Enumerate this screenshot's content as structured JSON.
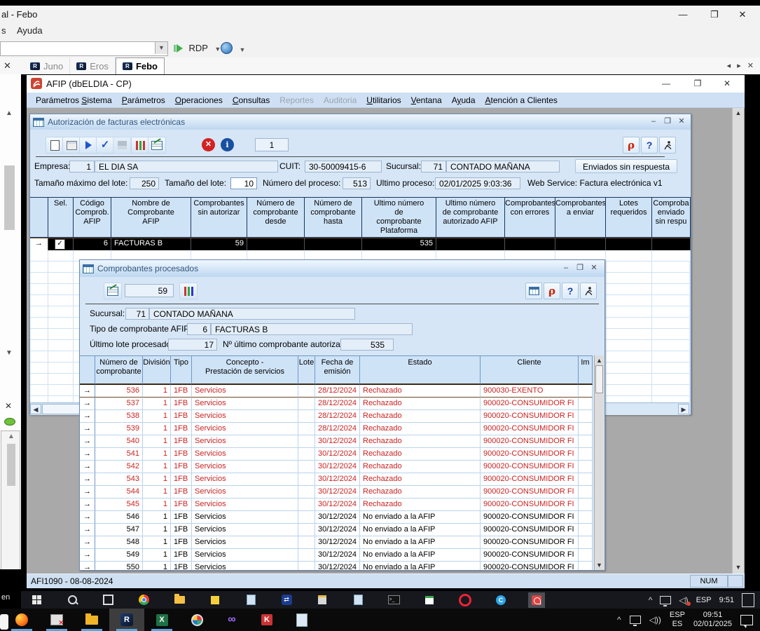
{
  "host": {
    "title": "al - Febo",
    "menu_partial": "s",
    "menu_item": "Ayuda",
    "rdp_label": "RDP",
    "close_glyph": "✕",
    "min_glyph": "—",
    "max_glyph": "❐",
    "tab_nav": "◂ ▸ ✕",
    "tabs": [
      {
        "label": "Juno",
        "active": false
      },
      {
        "label": "Eros",
        "active": false
      },
      {
        "label": "Febo",
        "active": true
      }
    ]
  },
  "afip": {
    "title": "AFIP   (dbELDIA - CP)",
    "menu": [
      {
        "pre": "Parámetros ",
        "u": "S",
        "post": "istema",
        "disabled": false
      },
      {
        "pre": "",
        "u": "P",
        "post": "arámetros",
        "disabled": false
      },
      {
        "pre": "",
        "u": "O",
        "post": "peraciones",
        "disabled": false
      },
      {
        "pre": "",
        "u": "C",
        "post": "onsultas",
        "disabled": false
      },
      {
        "pre": "Reportes",
        "u": "",
        "post": "",
        "disabled": true
      },
      {
        "pre": "Auditoria",
        "u": "",
        "post": "",
        "disabled": true
      },
      {
        "pre": "",
        "u": "U",
        "post": "tilitarios",
        "disabled": false
      },
      {
        "pre": "",
        "u": "V",
        "post": "entana",
        "disabled": false
      },
      {
        "pre": "A",
        "u": "y",
        "post": "uda",
        "disabled": false
      },
      {
        "pre": "",
        "u": "A",
        "post": "tención a Clientes",
        "disabled": false
      }
    ],
    "status_left": "AFI1090 - 08-08-2024",
    "status_num": "NUM"
  },
  "auth": {
    "title": "Autorización de facturas electrónicas",
    "counter": "1",
    "empresa_label": "Empresa:",
    "empresa_num": "1",
    "empresa_name": "EL DIA SA",
    "cuit_label": "CUIT:",
    "cuit": "30-50009415-6",
    "sucursal_label": "Sucursal:",
    "sucursal_num": "71",
    "sucursal_name": "CONTADO MAÑANA",
    "btn_enviados": "Enviados sin respuesta",
    "lote_max_label": "Tamaño máximo del lote:",
    "lote_max": "250",
    "lote_label": "Tamaño del lote:",
    "lote": "10",
    "proceso_label": "Número del proceso:",
    "proceso": "513",
    "ultimo_label": "Ultimo proceso:",
    "ultimo": "02/01/2025 9:03:36",
    "ws_label": "Web Service: Factura electrónica v1",
    "grid": {
      "headers": [
        "",
        "Sel.",
        "Código\nComprob.\nAFIP",
        "Nombre de\nComprobante\nAFIP",
        "Comprobantes\nsin autorizar",
        "Número de\ncomprobante\ndesde",
        "Número de\ncomprobante\nhasta",
        "Ultimo número\nde\ncomprobante\nPlataforma",
        "Ultimo número\nde comprobante\nautorizado AFIP",
        "Comprobantes\ncon errores",
        "Comprobantes\na enviar",
        "Lotes\nrequeridos",
        "Comproba\nenviado\nsin respu"
      ],
      "widths": [
        26,
        36,
        54,
        114,
        80,
        82,
        82,
        106,
        98,
        72,
        72,
        66,
        55
      ],
      "row": {
        "arrow": "→",
        "codigo": "6",
        "nombre": "FACTURAS B",
        "sin_autorizar": "59",
        "ultimo_plataforma": "535"
      }
    }
  },
  "proc": {
    "title": "Comprobantes procesados",
    "counter": "59",
    "sucursal_label": "Sucursal:",
    "sucursal_num": "71",
    "sucursal_name": "CONTADO MAÑANA",
    "tipo_label": "Tipo de comprobante AFIP:",
    "tipo_num": "6",
    "tipo_name": "FACTURAS B",
    "lote_label": "Último lote procesado:",
    "lote": "17",
    "autorizado_label": "Nº último comprobante autorizado:",
    "autorizado": "535",
    "table": {
      "headers": [
        "",
        "Número de\ncomprobante",
        "División",
        "Tipo",
        "Concepto -\nPrestación de servicios",
        "Lote",
        "Fecha de\nemisión",
        "Estado",
        "Cliente",
        "Im"
      ],
      "widths": [
        22,
        68,
        40,
        30,
        152,
        24,
        64,
        172,
        140,
        20
      ],
      "rows": [
        {
          "num": "536",
          "division": "1",
          "tipo": "1FB",
          "concepto": "Servicios",
          "lote": "",
          "fecha": "28/12/2024",
          "estado": "Rechazado",
          "cliente": "900030-EXENTO",
          "red": true
        },
        {
          "num": "537",
          "division": "1",
          "tipo": "1FB",
          "concepto": "Servicios",
          "lote": "",
          "fecha": "28/12/2024",
          "estado": "Rechazado",
          "cliente": "900020-CONSUMIDOR FI",
          "red": true
        },
        {
          "num": "538",
          "division": "1",
          "tipo": "1FB",
          "concepto": "Servicios",
          "lote": "",
          "fecha": "28/12/2024",
          "estado": "Rechazado",
          "cliente": "900020-CONSUMIDOR FI",
          "red": true
        },
        {
          "num": "539",
          "division": "1",
          "tipo": "1FB",
          "concepto": "Servicios",
          "lote": "",
          "fecha": "28/12/2024",
          "estado": "Rechazado",
          "cliente": "900020-CONSUMIDOR FI",
          "red": true
        },
        {
          "num": "540",
          "division": "1",
          "tipo": "1FB",
          "concepto": "Servicios",
          "lote": "",
          "fecha": "30/12/2024",
          "estado": "Rechazado",
          "cliente": "900020-CONSUMIDOR FI",
          "red": true
        },
        {
          "num": "541",
          "division": "1",
          "tipo": "1FB",
          "concepto": "Servicios",
          "lote": "",
          "fecha": "30/12/2024",
          "estado": "Rechazado",
          "cliente": "900020-CONSUMIDOR FI",
          "red": true
        },
        {
          "num": "542",
          "division": "1",
          "tipo": "1FB",
          "concepto": "Servicios",
          "lote": "",
          "fecha": "30/12/2024",
          "estado": "Rechazado",
          "cliente": "900020-CONSUMIDOR FI",
          "red": true
        },
        {
          "num": "543",
          "division": "1",
          "tipo": "1FB",
          "concepto": "Servicios",
          "lote": "",
          "fecha": "30/12/2024",
          "estado": "Rechazado",
          "cliente": "900020-CONSUMIDOR FI",
          "red": true
        },
        {
          "num": "544",
          "division": "1",
          "tipo": "1FB",
          "concepto": "Servicios",
          "lote": "",
          "fecha": "30/12/2024",
          "estado": "Rechazado",
          "cliente": "900020-CONSUMIDOR FI",
          "red": true
        },
        {
          "num": "545",
          "division": "1",
          "tipo": "1FB",
          "concepto": "Servicios",
          "lote": "",
          "fecha": "30/12/2024",
          "estado": "Rechazado",
          "cliente": "900020-CONSUMIDOR FI",
          "red": true
        },
        {
          "num": "546",
          "division": "1",
          "tipo": "1FB",
          "concepto": "Servicios",
          "lote": "",
          "fecha": "30/12/2024",
          "estado": "No enviado a la AFIP",
          "cliente": "900020-CONSUMIDOR FI",
          "red": false
        },
        {
          "num": "547",
          "division": "1",
          "tipo": "1FB",
          "concepto": "Servicios",
          "lote": "",
          "fecha": "30/12/2024",
          "estado": "No enviado a la AFIP",
          "cliente": "900020-CONSUMIDOR FI",
          "red": false
        },
        {
          "num": "548",
          "division": "1",
          "tipo": "1FB",
          "concepto": "Servicios",
          "lote": "",
          "fecha": "30/12/2024",
          "estado": "No enviado a la AFIP",
          "cliente": "900020-CONSUMIDOR FI",
          "red": false
        },
        {
          "num": "549",
          "division": "1",
          "tipo": "1FB",
          "concepto": "Servicios",
          "lote": "",
          "fecha": "30/12/2024",
          "estado": "No enviado a la AFIP",
          "cliente": "900020-CONSUMIDOR FI",
          "red": false
        },
        {
          "num": "550",
          "division": "1",
          "tipo": "1FB",
          "concepto": "Servicios",
          "lote": "",
          "fecha": "30/12/2024",
          "estado": "No enviado a la AFIP",
          "cliente": "900020-CONSUMIDOR FI",
          "red": false
        }
      ]
    }
  },
  "remote_taskbar": {
    "lang": "ESP",
    "time": "9:51",
    "icons": [
      "start",
      "search",
      "taskview",
      "chrome",
      "folder",
      "note",
      "appblue",
      "tv",
      "book",
      "appblue",
      "term",
      "cal",
      "opera",
      "appc",
      "afipred"
    ]
  },
  "local_taskbar": {
    "lang": "ESP",
    "lang2": "ES",
    "time": "09:51",
    "date": "02/01/2025",
    "icons": [
      "firefox",
      "installer",
      "folder2",
      "mr",
      "excel",
      "paint",
      "vs",
      "keepass",
      "notes"
    ]
  },
  "left_panel": {
    "bottom_text": "en"
  },
  "colors": {
    "rejected_text": "#cc2222",
    "selected_row_bg": "#000000",
    "menubar_bg": "#cfe0f5",
    "child_window_bg": "#d6e6f6"
  }
}
